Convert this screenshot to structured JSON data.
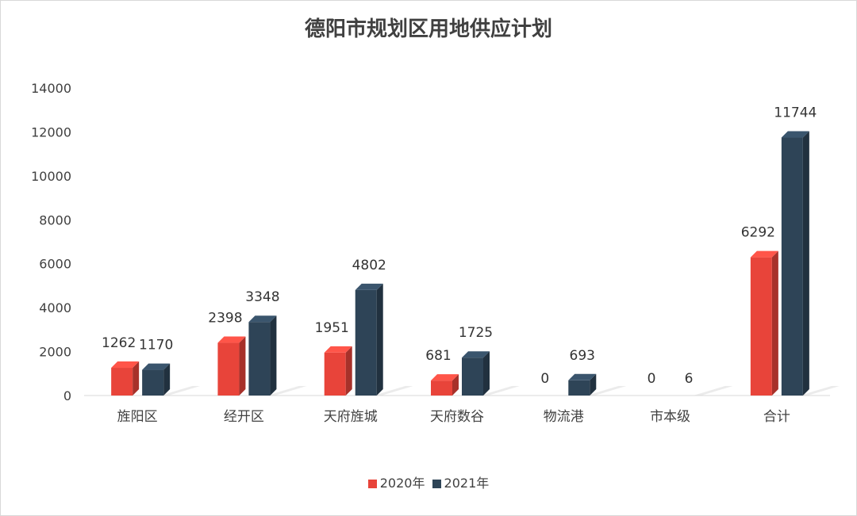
{
  "chart_data": {
    "type": "bar",
    "title": "德阳市规划区用地供应计划",
    "categories": [
      "旌阳区",
      "经开区",
      "天府旌城",
      "天府数谷",
      "物流港",
      "市本级",
      "合计"
    ],
    "series": [
      {
        "name": "2020年",
        "color": "#e8443a",
        "values": [
          1262,
          2398,
          1951,
          681,
          0,
          0,
          6292
        ]
      },
      {
        "name": "2021年",
        "color": "#2e4457",
        "values": [
          1170,
          3348,
          4802,
          1725,
          693,
          6,
          11744
        ]
      }
    ],
    "ylim": [
      0,
      14000
    ],
    "yticks": [
      0,
      2000,
      4000,
      6000,
      8000,
      10000,
      12000,
      14000
    ],
    "xlabel": "",
    "ylabel": "",
    "grid": false,
    "legend": "bottom",
    "style": "3d-columns"
  }
}
